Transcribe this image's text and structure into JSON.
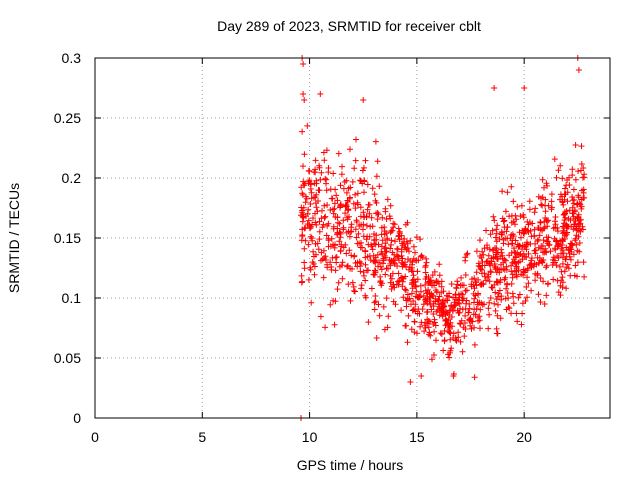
{
  "chart_data": {
    "type": "scatter",
    "title": "Day 289 of 2023, SRMTID for receiver cblt",
    "xlabel": "GPS time / hours",
    "ylabel": "SRMTID / TECUs",
    "xlim": [
      0,
      24
    ],
    "ylim": [
      0,
      0.3
    ],
    "x_ticks": [
      0,
      5,
      10,
      15,
      20
    ],
    "x_tick_labels": [
      "0",
      "5",
      "10",
      "15",
      "20"
    ],
    "y_ticks": [
      0,
      0.05,
      0.1,
      0.15,
      0.2,
      0.25,
      0.3
    ],
    "y_tick_labels": [
      "0",
      "0.05",
      "0.1",
      "0.15",
      "0.2",
      "0.25",
      "0.3"
    ],
    "grid": true,
    "marker": "+",
    "color": "#ff0000",
    "series": [
      {
        "name": "SRMTID",
        "profile_hours": [
          9.5,
          10.0,
          10.5,
          11.0,
          11.5,
          12.0,
          12.5,
          13.0,
          13.5,
          14.0,
          14.5,
          15.0,
          15.5,
          16.0,
          16.5,
          17.0,
          17.5,
          18.0,
          18.5,
          19.0,
          19.5,
          20.0,
          20.5,
          21.0,
          21.5,
          22.0,
          22.5,
          22.8
        ],
        "profile_center": [
          0.17,
          0.17,
          0.17,
          0.16,
          0.16,
          0.16,
          0.155,
          0.15,
          0.14,
          0.13,
          0.12,
          0.11,
          0.1,
          0.09,
          0.085,
          0.09,
          0.095,
          0.105,
          0.12,
          0.13,
          0.135,
          0.14,
          0.145,
          0.15,
          0.15,
          0.155,
          0.17,
          0.18
        ],
        "profile_spread": [
          0.06,
          0.06,
          0.06,
          0.055,
          0.055,
          0.055,
          0.05,
          0.05,
          0.045,
          0.04,
          0.04,
          0.035,
          0.035,
          0.03,
          0.03,
          0.03,
          0.035,
          0.04,
          0.04,
          0.045,
          0.045,
          0.045,
          0.045,
          0.045,
          0.045,
          0.05,
          0.05,
          0.05
        ],
        "approx_count": 1400,
        "data_start_hours": 9.6,
        "data_end_hours": 22.8,
        "outliers": [
          {
            "x": 9.6,
            "y": 0.0
          },
          {
            "x": 9.65,
            "y": 0.3
          },
          {
            "x": 9.7,
            "y": 0.295
          },
          {
            "x": 9.7,
            "y": 0.27
          },
          {
            "x": 9.75,
            "y": 0.265
          },
          {
            "x": 10.5,
            "y": 0.27
          },
          {
            "x": 12.5,
            "y": 0.265
          },
          {
            "x": 18.6,
            "y": 0.275
          },
          {
            "x": 20.0,
            "y": 0.275
          },
          {
            "x": 22.5,
            "y": 0.3
          },
          {
            "x": 22.55,
            "y": 0.29
          },
          {
            "x": 14.7,
            "y": 0.03
          },
          {
            "x": 16.7,
            "y": 0.035
          },
          {
            "x": 15.2,
            "y": 0.035
          }
        ]
      }
    ]
  }
}
